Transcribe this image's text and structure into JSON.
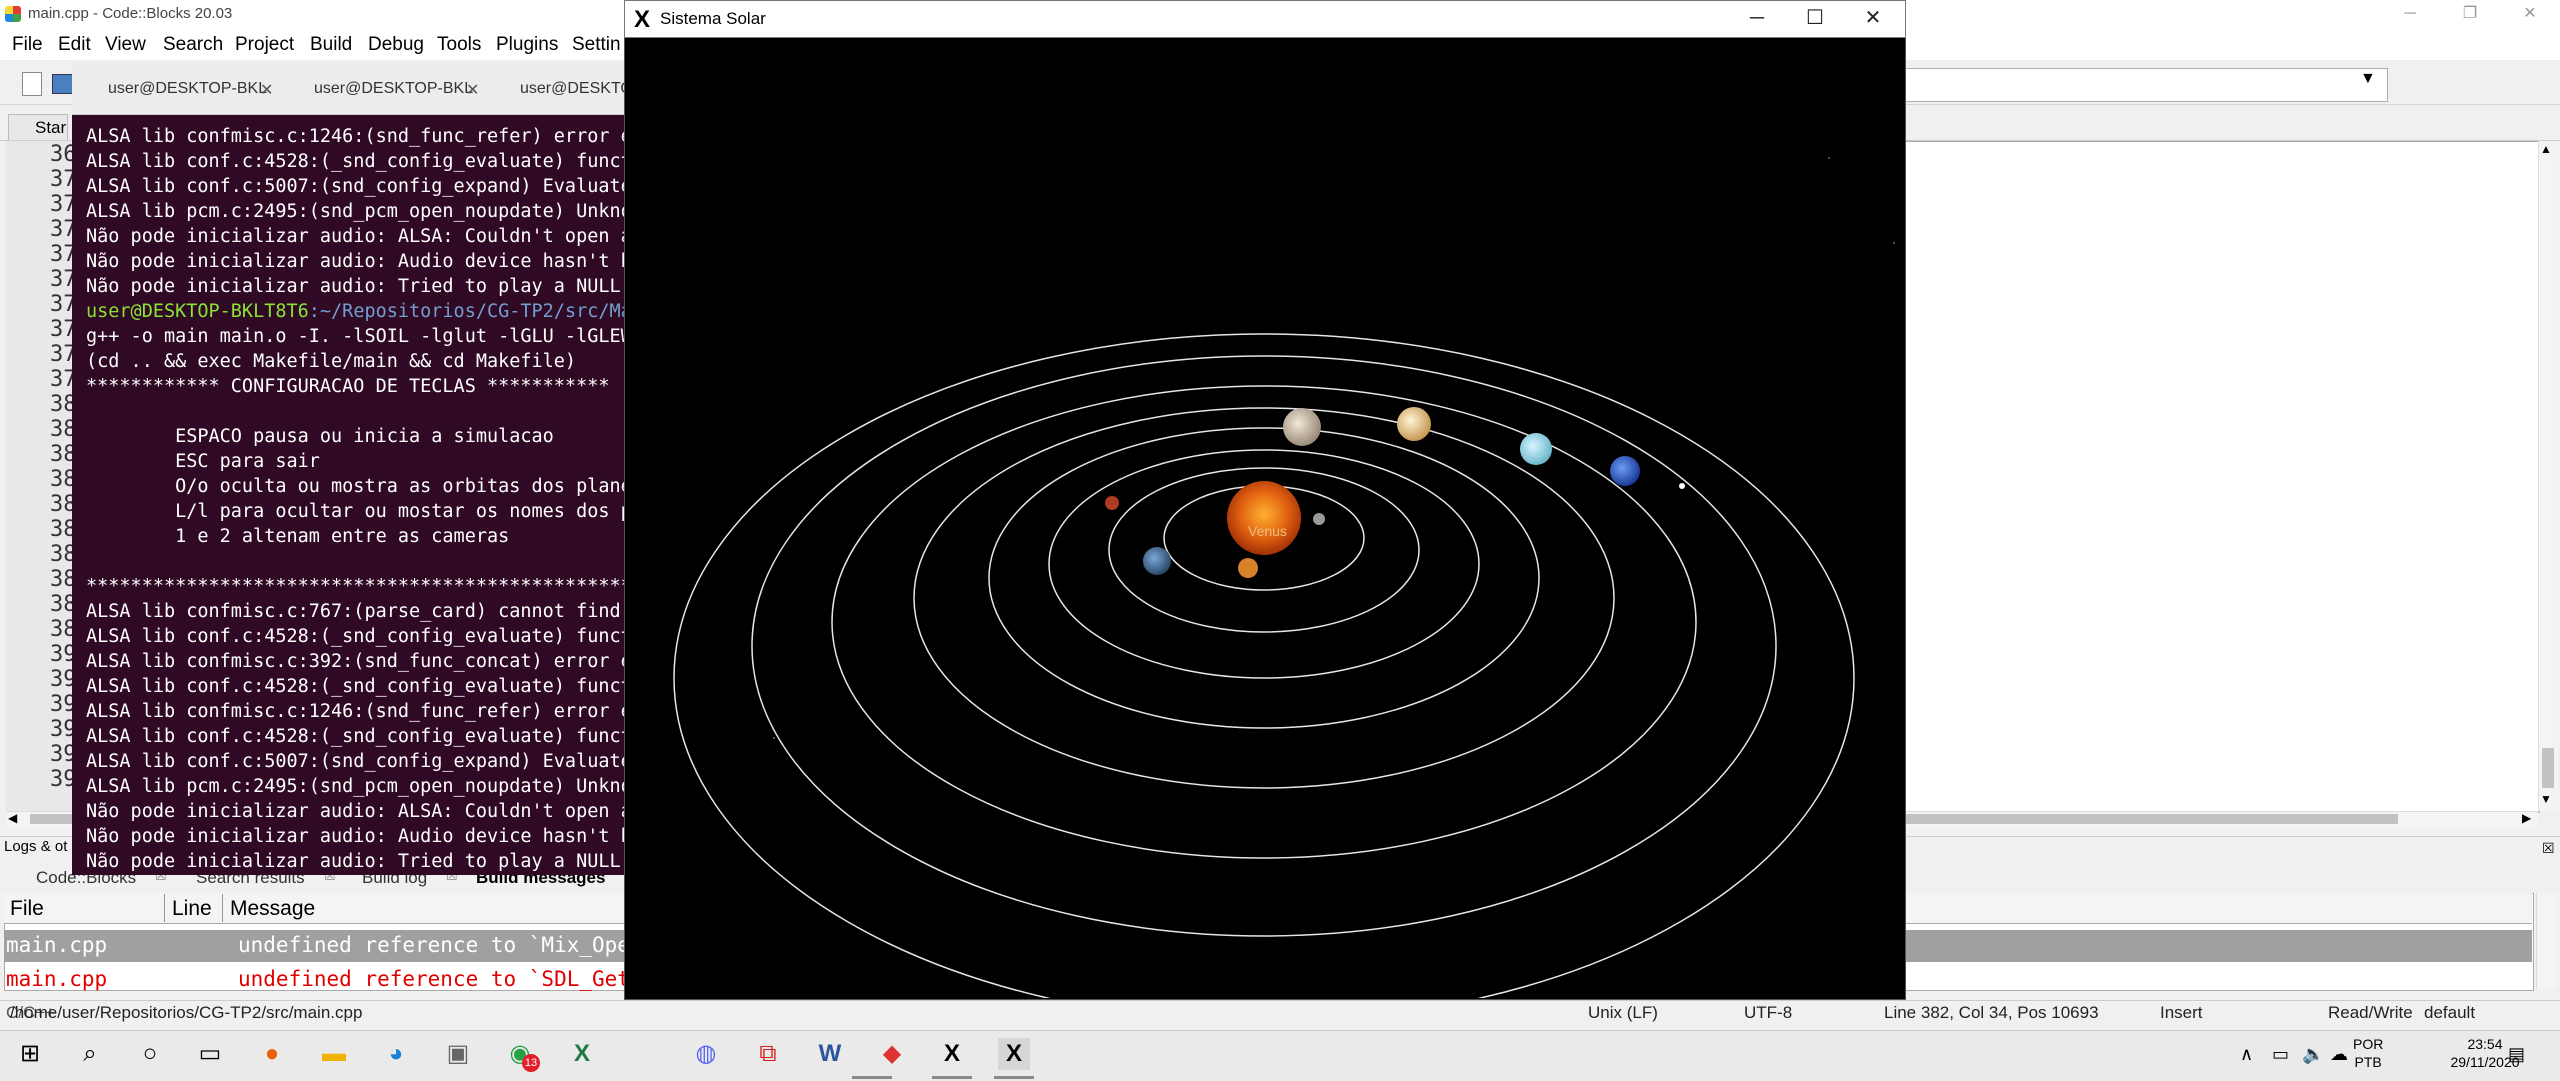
{
  "codeblocks": {
    "title": "main.cpp - Code::Blocks 20.03",
    "menu": [
      "File",
      "Edit",
      "View",
      "Search",
      "Project",
      "Build",
      "Debug",
      "Tools",
      "Plugins",
      "Settin"
    ],
    "start_tab": "Star",
    "line_numbers": [
      "36",
      "37",
      "37",
      "37",
      "37",
      "37",
      "37",
      "37",
      "37",
      "37",
      "38",
      "38",
      "38",
      "38",
      "38",
      "38",
      "38",
      "38",
      "38",
      "38",
      "39",
      "39",
      "39",
      "39",
      "39",
      "39"
    ],
    "logs_label": "Logs & ot",
    "log_tabs": [
      "Code::Blocks",
      "Search results",
      "Build log",
      "Build messages"
    ],
    "log_columns": [
      "File",
      "Line",
      "Message"
    ],
    "log_rows": [
      {
        "file": "main.cpp",
        "line": "",
        "message": "undefined reference to `Mix_Ope"
      },
      {
        "file": "main.cpp",
        "line": "",
        "message": "undefined reference to `SDL_Get"
      }
    ],
    "status": {
      "path": "/home/user/Repositorios/CG-TP2/src/main.cpp",
      "path_overlap": "C/C++",
      "eol": "Unix (LF)",
      "encoding": "UTF-8",
      "position": "Line 382, Col 34, Pos 10693",
      "mode": "Insert",
      "access": "Read/Write",
      "profile": "default"
    }
  },
  "terminal": {
    "tabs": [
      "user@DESKTOP-BKL",
      "user@DESKTOP-BKL",
      "user@DESKTOP"
    ],
    "prompt_user": "user@DESKTOP-BKLT8T6",
    "prompt_path": ":~/Repositorios/CG-TP2/src/Ma",
    "lines": [
      "ALSA lib confmisc.c:1246:(snd_func_refer) error e",
      "ALSA lib conf.c:4528:(_snd_config_evaluate) funct",
      "ALSA lib conf.c:5007:(snd_config_expand) Evaluate",
      "ALSA lib pcm.c:2495:(snd_pcm_open_noupdate) Unkno",
      "Não pode inicializar audio: ALSA: Couldn't open a",
      "Não pode inicializar audio: Audio device hasn't b",
      "Não pode inicializar audio: Tried to play a NULL ",
      "",
      "g++ -o main main.o -I. -lSOIL -lglut -lGLU -lGLEW",
      "(cd .. && exec Makefile/main && cd Makefile)",
      "************ CONFIGURACAO DE TECLAS ***********",
      "",
      "        ESPACO pausa ou inicia a simulacao",
      "        ESC para sair",
      "        O/o oculta ou mostra as orbitas dos plane",
      "        L/l para ocultar ou mostar os nomes dos p",
      "        1 e 2 altenam entre as cameras",
      "",
      "*************************************************",
      "ALSA lib confmisc.c:767:(parse_card) cannot find ",
      "ALSA lib conf.c:4528:(_snd_config_evaluate) funct",
      "ALSA lib confmisc.c:392:(snd_func_concat) error e",
      "ALSA lib conf.c:4528:(_snd_config_evaluate) funct",
      "ALSA lib confmisc.c:1246:(snd_func_refer) error e",
      "ALSA lib conf.c:4528:(_snd_config_evaluate) funct",
      "ALSA lib conf.c:5007:(snd_config_expand) Evaluate",
      "ALSA lib pcm.c:2495:(snd_pcm_open_noupdate) Unkno",
      "Não pode inicializar audio: ALSA: Couldn't open a",
      "Não pode inicializar audio: Audio device hasn't b",
      "Não pode inicializar audio: Tried to play a NULL "
    ]
  },
  "solar": {
    "title": "Sistema Solar",
    "planet_label": "Venus"
  },
  "taskbar": {
    "lang_top": "POR",
    "lang_bottom": "PTB",
    "time": "23:54",
    "date": "29/11/2020",
    "whatsapp_badge": "13"
  }
}
